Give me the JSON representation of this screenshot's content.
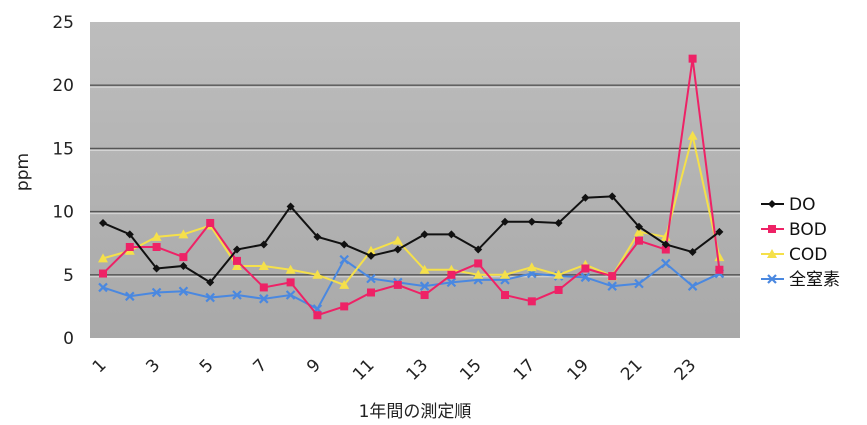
{
  "chart_data": {
    "type": "line",
    "title": "",
    "xlabel": "1年間の測定順",
    "ylabel": "ppm",
    "ylim": [
      0,
      25
    ],
    "yticks": [
      "0",
      "5",
      "10",
      "15",
      "20",
      "25"
    ],
    "x": [
      1,
      2,
      3,
      4,
      5,
      6,
      7,
      8,
      9,
      10,
      11,
      12,
      13,
      14,
      15,
      16,
      17,
      18,
      19,
      20,
      21,
      22,
      23,
      24
    ],
    "xtick_labels": [
      "1",
      "3",
      "5",
      "7",
      "9",
      "11",
      "13",
      "15",
      "17",
      "19",
      "21",
      "23"
    ],
    "grid": "horizontal",
    "legend_position": "right",
    "series": [
      {
        "name": "DO",
        "color": "#111111",
        "marker": "diamond",
        "values": [
          9.1,
          8.2,
          5.5,
          5.7,
          4.4,
          7.0,
          7.4,
          10.4,
          8.0,
          7.4,
          6.5,
          7.0,
          8.2,
          8.2,
          7.0,
          9.2,
          9.2,
          9.1,
          11.1,
          11.2,
          8.8,
          7.4,
          6.8,
          8.4
        ]
      },
      {
        "name": "BOD",
        "color": "#ee2266",
        "marker": "square",
        "values": [
          5.1,
          7.2,
          7.2,
          6.4,
          9.1,
          6.1,
          4.0,
          4.4,
          1.8,
          2.5,
          3.6,
          4.2,
          3.4,
          5.0,
          5.9,
          3.4,
          2.9,
          3.8,
          5.5,
          4.9,
          7.7,
          7.0,
          22.1,
          5.4
        ]
      },
      {
        "name": "COD",
        "color": "#f5e04a",
        "marker": "triangle",
        "values": [
          6.3,
          6.9,
          8.0,
          8.2,
          8.9,
          5.7,
          5.7,
          5.4,
          5.0,
          4.2,
          6.9,
          7.7,
          5.4,
          5.4,
          5.0,
          5.0,
          5.6,
          5.0,
          5.8,
          4.9,
          8.4,
          8.0,
          16.0,
          6.4
        ]
      },
      {
        "name": "全窒素",
        "color": "#4a88e0",
        "marker": "x",
        "values": [
          4.0,
          3.3,
          3.6,
          3.7,
          3.2,
          3.4,
          3.1,
          3.4,
          2.3,
          6.2,
          4.7,
          4.4,
          4.1,
          4.4,
          4.6,
          4.6,
          5.1,
          4.9,
          4.8,
          4.1,
          4.3,
          5.9,
          4.1,
          5.1
        ]
      }
    ]
  }
}
